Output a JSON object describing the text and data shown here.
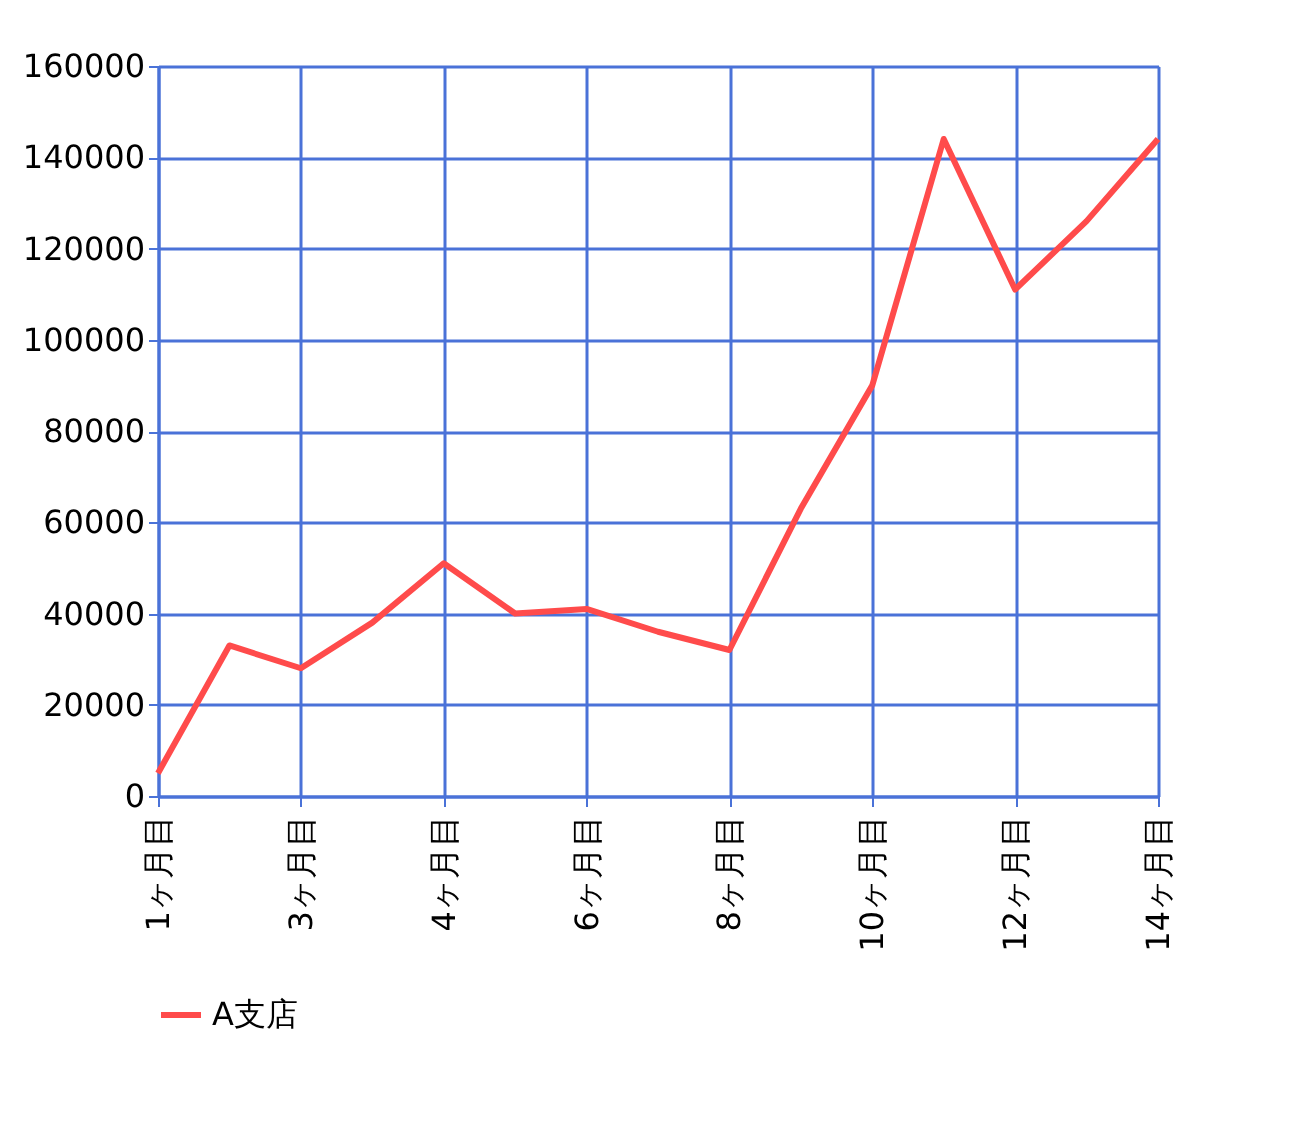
{
  "chart_data": {
    "type": "line",
    "categories": [
      "1ヶ月目",
      null,
      "3ヶ月目",
      null,
      "4ヶ月目",
      null,
      "6ヶ月目",
      null,
      "8ヶ月目",
      null,
      "10ヶ月目",
      null,
      "12ヶ月目",
      null,
      "14ヶ月目"
    ],
    "series": [
      {
        "name": "A支店",
        "color": "#ff4b4b",
        "values": [
          5000,
          33000,
          28000,
          38000,
          51000,
          40000,
          41000,
          36000,
          32000,
          63000,
          90000,
          144000,
          111000,
          126000,
          144000
        ]
      }
    ],
    "ylim": [
      0,
      160000
    ],
    "yticks": [
      0,
      20000,
      40000,
      60000,
      80000,
      100000,
      120000,
      140000,
      160000
    ],
    "grid": true,
    "legend": "bottom left",
    "marker": "none",
    "line_style": "solid"
  }
}
